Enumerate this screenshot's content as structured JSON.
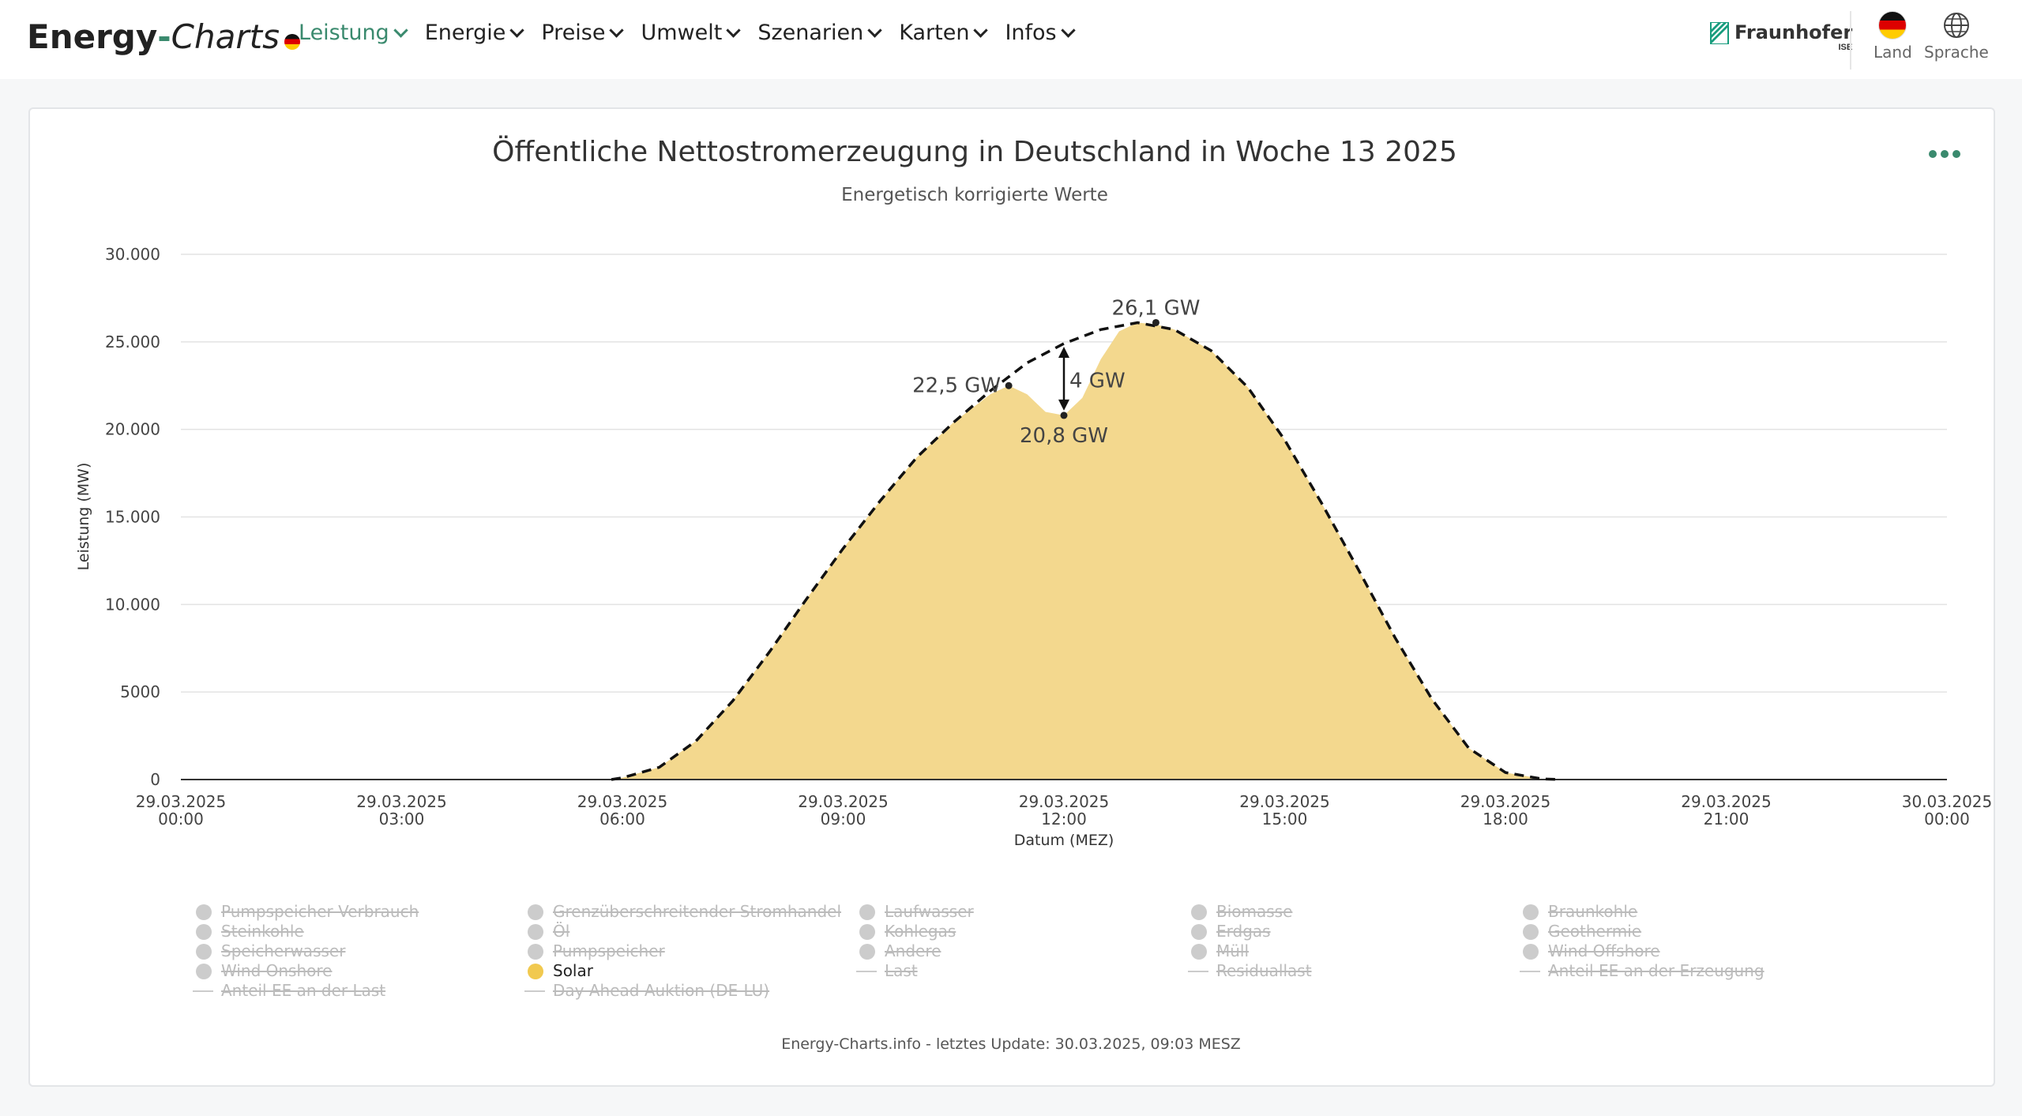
{
  "header": {
    "brand_part1": "Energy",
    "brand_dash": "-",
    "brand_part2": "Charts",
    "nav": [
      "Leistung",
      "Energie",
      "Preise",
      "Umwelt",
      "Szenarien",
      "Karten",
      "Infos"
    ],
    "active_nav": "Leistung",
    "fraunhofer_name": "Fraunhofer",
    "fraunhofer_sub": "ISE",
    "country_label": "Land",
    "language_label": "Sprache"
  },
  "footer_text": "Energy-Charts.info - letztes Update: 30.03.2025, 09:03 MESZ",
  "colors": {
    "accent": "#3a8a6e",
    "solar_fill": "#f3d88e",
    "solar_legend": "#f1c94f"
  },
  "chart_data": {
    "type": "area",
    "title": "Öffentliche Nettostromerzeugung in Deutschland in Woche 13 2025",
    "subtitle": "Energetisch korrigierte Werte",
    "xlabel": "Datum (MEZ)",
    "ylabel": "Leistung (MW)",
    "ylim": [
      0,
      30000
    ],
    "yticks": [
      0,
      5000,
      10000,
      15000,
      20000,
      25000,
      30000
    ],
    "ytick_labels": [
      "0",
      "5000",
      "10.000",
      "15.000",
      "20.000",
      "25.000",
      "30.000"
    ],
    "xlim": [
      "29.03.2025 00:00",
      "30.03.2025 00:00"
    ],
    "xticks": [
      {
        "date": "29.03.2025",
        "time": "00:00",
        "hour": 0
      },
      {
        "date": "29.03.2025",
        "time": "03:00",
        "hour": 3
      },
      {
        "date": "29.03.2025",
        "time": "06:00",
        "hour": 6
      },
      {
        "date": "29.03.2025",
        "time": "09:00",
        "hour": 9
      },
      {
        "date": "29.03.2025",
        "time": "12:00",
        "hour": 12
      },
      {
        "date": "29.03.2025",
        "time": "15:00",
        "hour": 15
      },
      {
        "date": "29.03.2025",
        "time": "18:00",
        "hour": 18
      },
      {
        "date": "29.03.2025",
        "time": "21:00",
        "hour": 21
      },
      {
        "date": "30.03.2025",
        "time": "00:00",
        "hour": 24
      }
    ],
    "grid": true,
    "series": [
      {
        "name": "Solar",
        "x_hours": [
          0,
          5.85,
          6.0,
          6.5,
          7.0,
          7.5,
          8.0,
          8.5,
          9.0,
          9.5,
          10.0,
          10.5,
          11.0,
          11.25,
          11.5,
          11.75,
          12.0,
          12.25,
          12.5,
          12.75,
          13.0,
          13.25,
          13.5,
          14.0,
          14.5,
          15.0,
          15.5,
          16.0,
          16.5,
          17.0,
          17.5,
          18.0,
          18.5,
          18.75,
          24
        ],
        "values": [
          0,
          0,
          100,
          700,
          2200,
          4500,
          7300,
          10300,
          13200,
          15900,
          18400,
          20400,
          22000,
          22500,
          22000,
          21000,
          20800,
          21800,
          24000,
          25600,
          26100,
          26000,
          25700,
          24500,
          22400,
          19400,
          15800,
          12000,
          8100,
          4600,
          1800,
          400,
          30,
          0,
          0
        ]
      }
    ],
    "annotation_curve": {
      "style": "dashed",
      "x_hours": [
        5.85,
        6.0,
        6.5,
        7.0,
        7.5,
        8.0,
        8.5,
        9.0,
        9.5,
        10.0,
        10.5,
        11.0,
        11.5,
        12.0,
        12.5,
        13.0,
        13.5,
        14.0,
        14.5,
        15.0,
        15.5,
        16.0,
        16.5,
        17.0,
        17.5,
        18.0,
        18.5,
        18.75
      ],
      "values": [
        0,
        100,
        700,
        2200,
        4500,
        7300,
        10300,
        13200,
        15900,
        18400,
        20400,
        22200,
        23800,
        24900,
        25700,
        26100,
        25700,
        24500,
        22400,
        19400,
        15800,
        12000,
        8100,
        4600,
        1800,
        400,
        30,
        0
      ]
    },
    "annotations": [
      {
        "text": "26,1 GW",
        "x_hour": 13.25,
        "value": 26100
      },
      {
        "text": "22,5 GW",
        "x_hour": 11.25,
        "value": 22500
      },
      {
        "text": "20,8 GW",
        "x_hour": 12.0,
        "value": 20800
      },
      {
        "text": "4 GW",
        "x_hour": 12.0,
        "value": 22800
      }
    ]
  },
  "legend": [
    {
      "label": "Pumpspeicher Verbrauch",
      "active": false,
      "kind": "dot"
    },
    {
      "label": "Steinkohle",
      "active": false,
      "kind": "dot"
    },
    {
      "label": "Speicherwasser",
      "active": false,
      "kind": "dot"
    },
    {
      "label": "Wind Onshore",
      "active": false,
      "kind": "dot"
    },
    {
      "label": "Anteil EE an der Last",
      "active": false,
      "kind": "line"
    },
    {
      "label": "Grenzüberschreitender Stromhandel",
      "active": false,
      "kind": "dot"
    },
    {
      "label": "Öl",
      "active": false,
      "kind": "dot"
    },
    {
      "label": "Pumpspeicher",
      "active": false,
      "kind": "dot"
    },
    {
      "label": "Solar",
      "active": true,
      "kind": "dot"
    },
    {
      "label": "Day Ahead Auktion (DE-LU)",
      "active": false,
      "kind": "line"
    },
    {
      "label": "Laufwasser",
      "active": false,
      "kind": "dot"
    },
    {
      "label": "Kohlegas",
      "active": false,
      "kind": "dot"
    },
    {
      "label": "Andere",
      "active": false,
      "kind": "dot"
    },
    {
      "label": "Last",
      "active": false,
      "kind": "line"
    },
    {
      "label": "Biomasse",
      "active": false,
      "kind": "dot"
    },
    {
      "label": "Erdgas",
      "active": false,
      "kind": "dot"
    },
    {
      "label": "Müll",
      "active": false,
      "kind": "dot"
    },
    {
      "label": "Residuallast",
      "active": false,
      "kind": "line"
    },
    {
      "label": "Braunkohle",
      "active": false,
      "kind": "dot"
    },
    {
      "label": "Geothermie",
      "active": false,
      "kind": "dot"
    },
    {
      "label": "Wind Offshore",
      "active": false,
      "kind": "dot"
    },
    {
      "label": "Anteil EE an der Erzeugung",
      "active": false,
      "kind": "line"
    }
  ]
}
